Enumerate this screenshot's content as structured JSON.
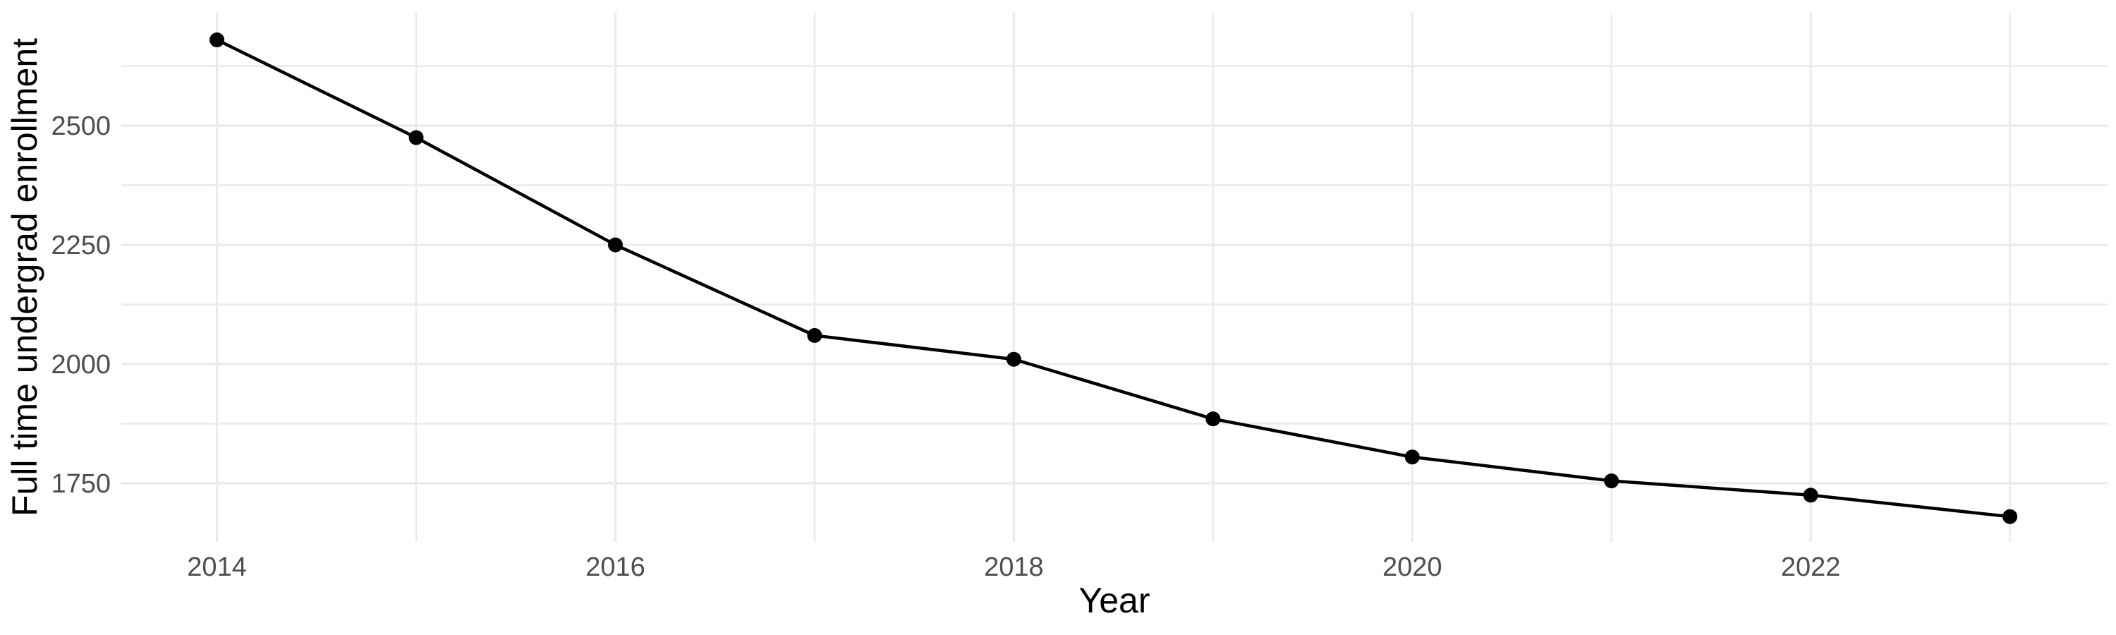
{
  "chart_data": {
    "type": "line",
    "title": "",
    "xlabel": "Year",
    "ylabel": "Full time undergrad enrollment",
    "x": [
      2014,
      2015,
      2016,
      2017,
      2018,
      2019,
      2020,
      2021,
      2022,
      2023
    ],
    "series": [
      {
        "name": "Full time undergrad enrollment",
        "values": [
          2680,
          2475,
          2250,
          2060,
          2010,
          1885,
          1805,
          1755,
          1725,
          1680
        ]
      }
    ],
    "x_major_ticks": [
      2014,
      2016,
      2018,
      2020,
      2022
    ],
    "x_major_tick_labels": [
      "2014",
      "2016",
      "2018",
      "2020",
      "2022"
    ],
    "x_minor_gridlines": [
      2015,
      2017,
      2019,
      2021,
      2023
    ],
    "y_major_ticks": [
      1750,
      2000,
      2250,
      2500
    ],
    "y_major_tick_labels": [
      "1750",
      "2000",
      "2250",
      "2500"
    ],
    "y_minor_gridlines": [
      1875,
      2125,
      2375,
      2625
    ],
    "xlim": [
      2013.52,
      2023.49
    ],
    "ylim": [
      1627,
      2737
    ],
    "grid": true,
    "legend_position": "none",
    "colors": {
      "line": "#000000",
      "point": "#000000",
      "grid_major": "#EBEBEB",
      "grid_minor": "#EBEBEB",
      "tick_label": "#4D4D4D",
      "axis_title": "#000000",
      "background": "#FFFFFF"
    }
  }
}
